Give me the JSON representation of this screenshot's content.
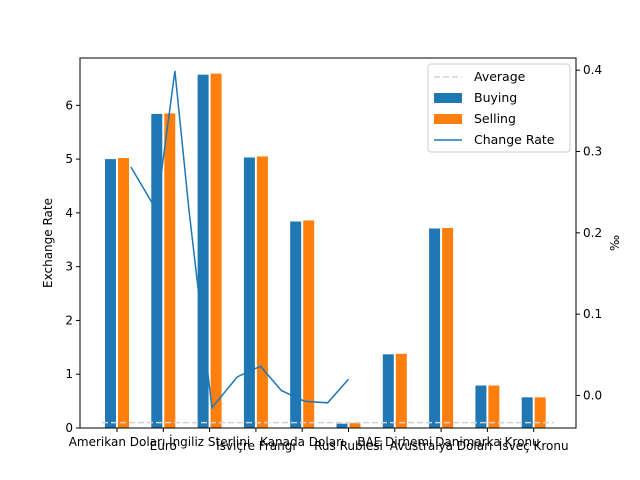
{
  "chart_data": {
    "type": "bar",
    "categories": [
      "Amerikan Doları",
      "Euro",
      "İngiliz Sterlini",
      "İsviçre Frangı",
      "Kanada Doları",
      "Rus Rublesi",
      "BAE Dirhemi",
      "Avustralya Doları",
      "Danimarka Kronu",
      "İsveç Kronu"
    ],
    "series": [
      {
        "name": "Buying",
        "color": "#1f77b4",
        "values": [
          5.0,
          5.84,
          6.57,
          5.03,
          3.84,
          0.08,
          1.37,
          3.71,
          0.79,
          0.57
        ]
      },
      {
        "name": "Selling",
        "color": "#ff7f0e",
        "values": [
          5.02,
          5.85,
          6.59,
          5.05,
          3.86,
          0.09,
          1.38,
          3.72,
          0.79,
          0.57
        ]
      }
    ],
    "average": {
      "name": "Average",
      "color": "#d3d3d3",
      "value": 0.1
    },
    "change_rate": {
      "name": "Change Rate",
      "color": "#1f77b4",
      "axis": "right",
      "x": [
        0.3,
        0.85,
        1.25,
        1.55,
        2.05,
        2.6,
        3.1,
        3.55,
        4.05,
        4.55,
        5.0,
        5.4,
        5.65
      ],
      "values": [
        0.281,
        0.228,
        0.399,
        0.23,
        -0.015,
        0.023,
        0.036,
        0.006,
        -0.007,
        -0.009,
        0.02,
        null,
        null
      ]
    },
    "ylabel": "Exchange Rate",
    "ylabel_right": "‰",
    "ylim": [
      0,
      6.88
    ],
    "yticks": [
      0,
      1,
      2,
      3,
      4,
      5,
      6
    ],
    "ylim_right": [
      -0.04,
      0.415
    ],
    "yticks_right": [
      0.0,
      0.1,
      0.2,
      0.3,
      0.4
    ],
    "legend_position": "upper right",
    "grid": false
  }
}
